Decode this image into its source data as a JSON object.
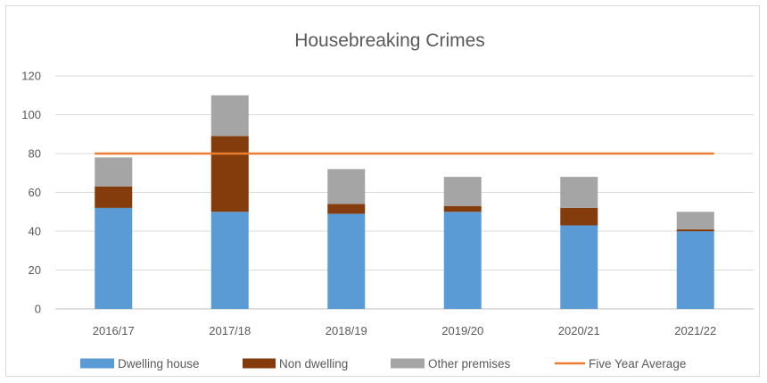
{
  "chart_data": {
    "type": "bar",
    "stacked": true,
    "title": "Housebreaking  Crimes",
    "xlabel": "",
    "ylabel": "",
    "categories": [
      "2016/17",
      "2017/18",
      "2018/19",
      "2019/20",
      "2020/21",
      "2021/22"
    ],
    "series": [
      {
        "name": "Dwelling house",
        "type": "bar",
        "color": "#5b9bd5",
        "values": [
          52,
          50,
          49,
          50,
          43,
          40
        ]
      },
      {
        "name": "Non dwelling",
        "type": "bar",
        "color": "#843c0c",
        "values": [
          11,
          39,
          5,
          3,
          9,
          1
        ]
      },
      {
        "name": "Other premises",
        "type": "bar",
        "color": "#a5a5a5",
        "values": [
          15,
          21,
          18,
          15,
          16,
          9
        ]
      },
      {
        "name": "Five Year Average",
        "type": "line",
        "color": "#ed7d31",
        "values": [
          80,
          80,
          80,
          80,
          80,
          80
        ]
      }
    ],
    "ylim": [
      0,
      120
    ],
    "yticks": [
      0,
      20,
      40,
      60,
      80,
      100,
      120
    ],
    "grid": true,
    "legend": "bottom"
  }
}
